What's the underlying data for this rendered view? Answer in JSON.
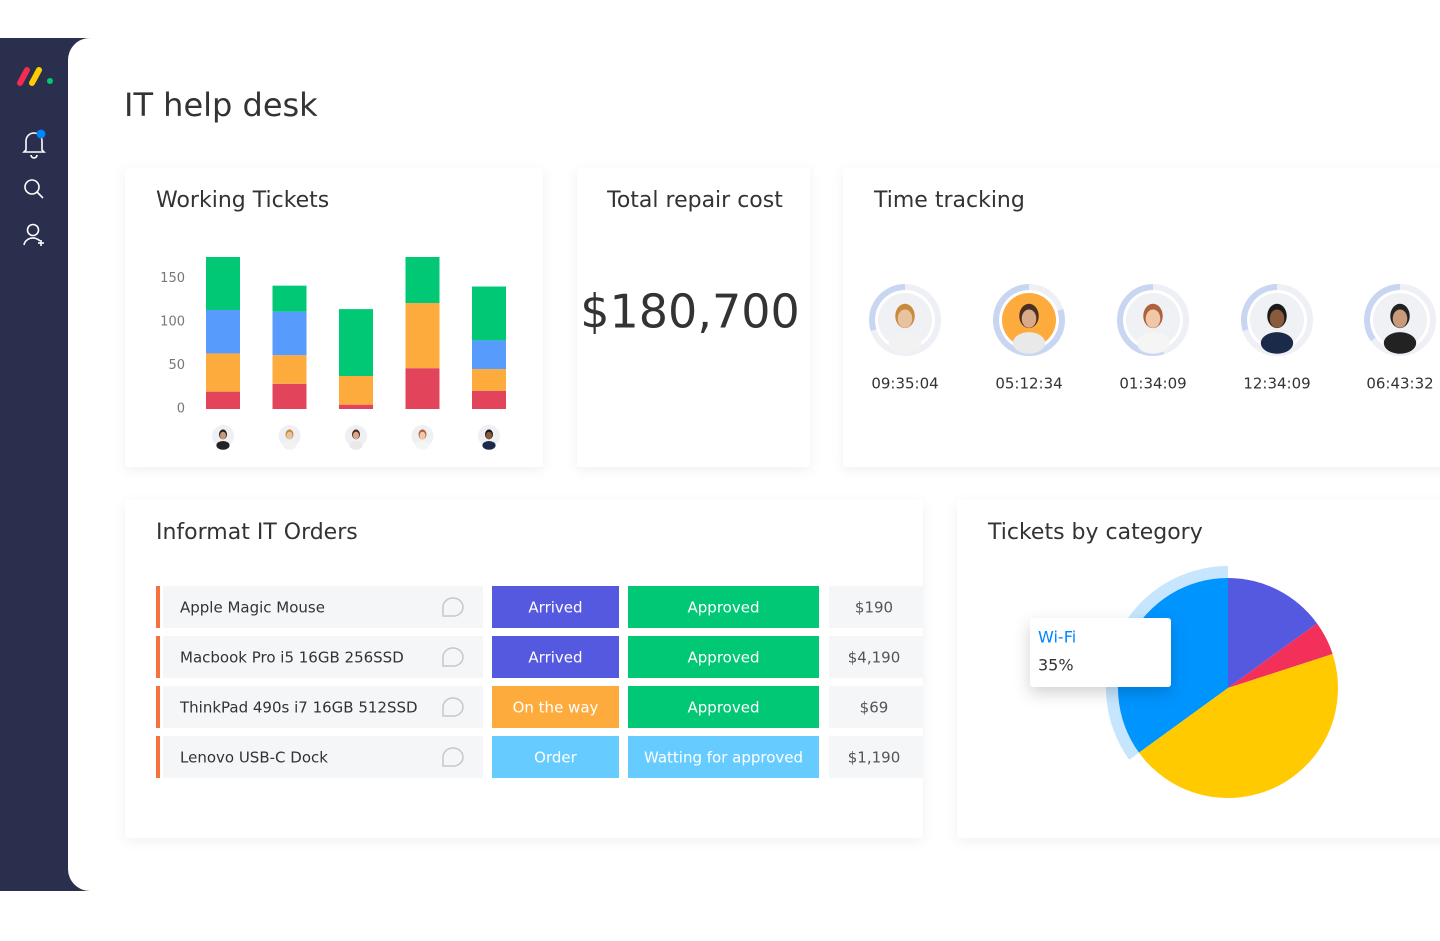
{
  "header": {
    "title": "IT help desk"
  },
  "total_repair_cost": {
    "title": "Total repair cost",
    "value": "$180,700"
  },
  "time_tracking": {
    "title": "Time tracking",
    "times": [
      "09:35:04",
      "05:12:34",
      "01:34:09",
      "12:34:09",
      "06:43:32"
    ]
  },
  "orders": {
    "title": "Informat IT Orders",
    "rows": [
      {
        "item": "Apple Magic Mouse",
        "status": "Arrived",
        "status_color": "#5559df",
        "approval": "Approved",
        "approval_color": "#00c875",
        "price": "$190"
      },
      {
        "item": "Macbook Pro i5 16GB 256SSD",
        "status": "Arrived",
        "status_color": "#5559df",
        "approval": "Approved",
        "approval_color": "#00c875",
        "price": "$4,190"
      },
      {
        "item": "ThinkPad 490s  i7 16GB 512SSD",
        "status": "On the way",
        "status_color": "#fdab3d",
        "approval": "Approved",
        "approval_color": "#00c875",
        "price": "$69"
      },
      {
        "item": "Lenovo USB-C Dock",
        "status": "Order",
        "status_color": "#66ccff",
        "approval": "Watting for approved",
        "approval_color": "#66ccff",
        "price": "$1,190"
      }
    ]
  },
  "chart_data": [
    {
      "type": "bar",
      "stacked": true,
      "title": "Working Tickets",
      "categories": [
        null,
        null,
        null,
        null,
        null
      ],
      "series": [
        {
          "color": "#e2445c",
          "values": [
            20,
            29,
            5,
            47,
            21
          ]
        },
        {
          "color": "#fdab3d",
          "values": [
            44,
            33,
            33,
            75,
            25
          ]
        },
        {
          "color": "#579bfc",
          "values": [
            50,
            50,
            0,
            0,
            33
          ]
        },
        {
          "color": "#00c875",
          "values": [
            61,
            30,
            77,
            53,
            62
          ]
        }
      ],
      "ylim": [
        0,
        175
      ],
      "yticks": [
        0,
        50,
        100,
        150
      ]
    },
    {
      "type": "pie",
      "title": "Tickets by category",
      "categories": [
        "Wi-Fi",
        null,
        null,
        null
      ],
      "values": [
        35,
        15,
        5,
        45
      ],
      "value_labels": [
        "35%",
        null,
        null,
        null
      ],
      "colors": [
        "#0094ff",
        "#5559df",
        "#f2305a",
        "#ffcb00"
      ],
      "start_angle": 234
    }
  ]
}
